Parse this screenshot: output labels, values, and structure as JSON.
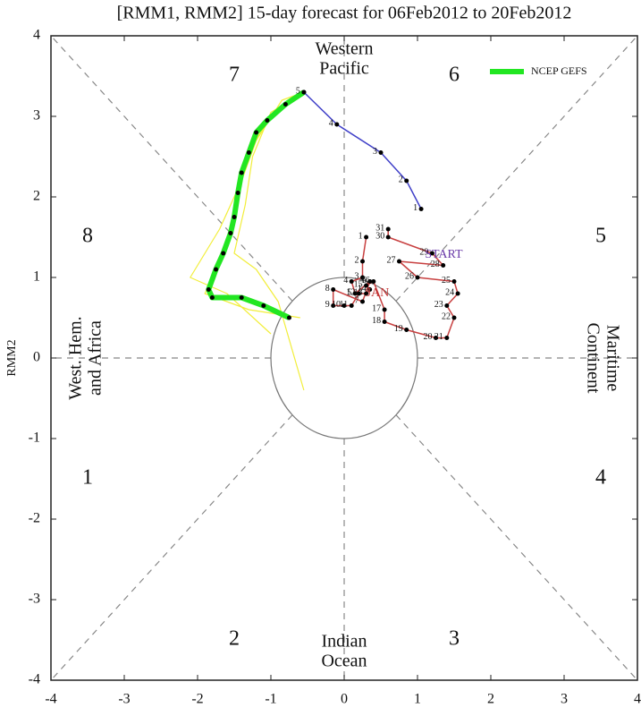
{
  "chart_data": {
    "type": "line",
    "title": "[RMM1, RMM2] 15-day forecast for 06Feb2012 to 20Feb2012",
    "ylabel": "RMM2",
    "xlim": [
      -4,
      4
    ],
    "ylim": [
      -4,
      4
    ],
    "xticks": [
      -4,
      -3,
      -2,
      -1,
      0,
      1,
      2,
      3,
      4
    ],
    "yticks": [
      -4,
      -3,
      -2,
      -1,
      0,
      1,
      2,
      3,
      4
    ],
    "legend": "upper right",
    "phase_labels": [
      1,
      2,
      3,
      4,
      5,
      6,
      7,
      8
    ],
    "region_labels": [
      [
        "Western",
        "Pacific"
      ],
      [
        "Indian",
        "Ocean"
      ],
      [
        "West. Hem.",
        "and Africa"
      ],
      [
        "Maritime",
        "Continent"
      ]
    ],
    "annotations": [
      {
        "text": "START",
        "x": 1.1,
        "y": 1.28,
        "color": "#6a3aa8"
      },
      {
        "text": "JAN",
        "x": 0.3,
        "y": 0.8,
        "color": "#c03030"
      }
    ],
    "series": [
      {
        "color": "#f2ee3a",
        "width": 1.2,
        "x": [
          -0.55,
          -0.9,
          -1.3,
          -1.45,
          -1.6,
          -1.9,
          -1.3,
          -0.6
        ],
        "values": [
          3.3,
          3.1,
          2.6,
          2.0,
          1.4,
          0.8,
          0.6,
          0.5
        ]
      },
      {
        "color": "#f2ee3a",
        "width": 1.2,
        "x": [
          -0.55,
          -1.0,
          -1.25,
          -1.35,
          -1.5,
          -1.2,
          -0.9,
          -0.55
        ],
        "values": [
          3.3,
          3.05,
          2.5,
          1.9,
          1.3,
          1.1,
          0.7,
          -0.4
        ]
      },
      {
        "color": "#f2ee3a",
        "width": 1.2,
        "x": [
          -0.55,
          -0.85,
          -1.2,
          -1.4,
          -1.7,
          -2.1,
          -1.6,
          -1.0
        ],
        "values": [
          3.3,
          3.2,
          2.7,
          2.2,
          1.6,
          1.0,
          0.8,
          0.3
        ]
      },
      {
        "name": "NCEP GEFS",
        "color": "#22e622",
        "width": 6,
        "marker": true,
        "x": [
          -0.55,
          -0.8,
          -1.05,
          -1.2,
          -1.3,
          -1.4,
          -1.45,
          -1.5,
          -1.55,
          -1.65,
          -1.75,
          -1.85,
          -1.8,
          -1.4,
          -1.1,
          -0.75
        ],
        "values": [
          3.3,
          3.15,
          2.95,
          2.8,
          2.55,
          2.3,
          2.05,
          1.75,
          1.55,
          1.3,
          1.1,
          0.85,
          0.75,
          0.75,
          0.65,
          0.5
        ]
      },
      {
        "color": "#c84040",
        "width": 1.5,
        "marker": true,
        "x": [
          0.3,
          0.25,
          0.25,
          0.1,
          0.15,
          0.35,
          0.25,
          -0.15,
          -0.15,
          0.0,
          0.1,
          0.2,
          0.3,
          0.35,
          0.3,
          0.4,
          0.55,
          0.55,
          0.85,
          1.25,
          1.4,
          1.5,
          1.4,
          1.55,
          1.5,
          1.0,
          0.75,
          1.35,
          1.2,
          0.6,
          0.6
        ],
        "values": [
          1.5,
          1.2,
          1.0,
          0.95,
          0.8,
          0.95,
          0.7,
          0.85,
          0.65,
          0.65,
          0.65,
          0.8,
          0.8,
          0.85,
          0.9,
          0.95,
          0.6,
          0.45,
          0.35,
          0.25,
          0.25,
          0.5,
          0.65,
          0.8,
          0.95,
          1.0,
          1.2,
          1.15,
          1.3,
          1.5,
          1.6
        ],
        "labels": [
          1,
          2,
          3,
          4,
          5,
          6,
          7,
          8,
          9,
          10,
          11,
          12,
          13,
          14,
          15,
          16,
          17,
          18,
          19,
          20,
          21,
          22,
          23,
          24,
          25,
          26,
          27,
          28,
          29,
          30,
          31
        ]
      },
      {
        "color": "#4040c8",
        "width": 1.5,
        "marker": true,
        "x": [
          1.05,
          0.85,
          0.5,
          -0.1,
          -0.55
        ],
        "values": [
          1.85,
          2.2,
          2.55,
          2.9,
          3.3
        ],
        "labels": [
          1,
          2,
          3,
          4,
          5
        ]
      }
    ]
  }
}
